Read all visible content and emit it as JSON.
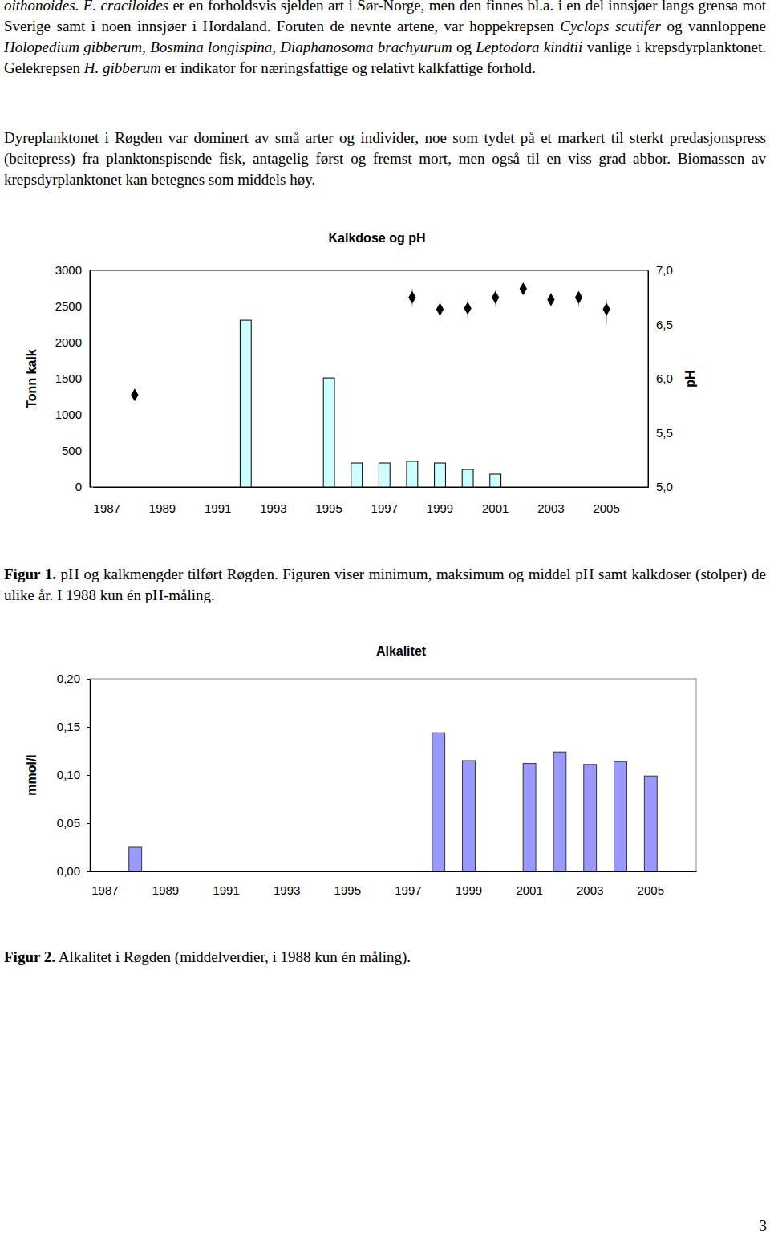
{
  "paragraphs": [
    [
      {
        "text": "oithonoides. E. craciloides",
        "italic": true
      },
      {
        "text": " er en forholdsvis sjelden art i Sør-Norge, men den finnes bl.a. i en del innsjøer langs grensa mot Sverige samt i noen innsjøer i Hordaland. Foruten de nevnte artene, var hoppekrepsen "
      },
      {
        "text": "Cyclops scutifer",
        "italic": true
      },
      {
        "text": " og vannloppene "
      },
      {
        "text": "Holopedium gibberum",
        "italic": true
      },
      {
        "text": ", "
      },
      {
        "text": "Bosmina longispina",
        "italic": true
      },
      {
        "text": ", "
      },
      {
        "text": "Diaphanosoma brachyurum",
        "italic": true
      },
      {
        "text": " og "
      },
      {
        "text": "Leptodora kindtii",
        "italic": true
      },
      {
        "text": " vanlige i krepsdyrplanktonet. Gelekrepsen "
      },
      {
        "text": "H. gibberum",
        "italic": true
      },
      {
        "text": " er indikator for næringsfattige og relativt kalkfattige forhold."
      }
    ],
    [
      {
        "text": "Dyreplanktonet i Røgden var dominert av små arter og individer, noe som tydet på et markert til sterkt predasjonspress (beitepress) fra planktonspisende fisk, antagelig først og fremst mort, men også til en viss grad abbor. Biomassen av krepsdyrplanktonet kan betegnes som middels høy."
      }
    ]
  ],
  "chart_data": [
    {
      "type": "bar",
      "title": "Kalkdose og pH",
      "categories": [
        "1987",
        null,
        "1989",
        null,
        "1991",
        null,
        "1993",
        null,
        "1995",
        null,
        "1997",
        null,
        "1999",
        null,
        "2001",
        null,
        "2003",
        null,
        "2005",
        null
      ],
      "y_label": "Tonn kalk",
      "y2_label": "pH",
      "ylim": [
        0,
        3000
      ],
      "yticks": [
        0,
        500,
        1000,
        1500,
        2000,
        2500,
        3000
      ],
      "y2lim": [
        5,
        7
      ],
      "y2ticks": [
        {
          "value": 5,
          "label": "5,0"
        },
        {
          "value": 5.5,
          "label": "5,5"
        },
        {
          "value": 6,
          "label": "6,0"
        },
        {
          "value": 6.5,
          "label": "6,5"
        },
        {
          "value": 7,
          "label": "7,0"
        }
      ],
      "series": [
        {
          "type": "bar",
          "color": "#ccffff",
          "values": [
            null,
            null,
            null,
            null,
            null,
            2310,
            null,
            null,
            1510,
            333,
            333,
            356,
            333,
            244,
            178,
            null,
            null,
            null,
            null,
            null
          ]
        },
        {
          "type": "scatter",
          "axis": "y2",
          "marker": "diamond",
          "color": "#000000",
          "values": [
            null,
            5.85,
            null,
            null,
            null,
            null,
            null,
            null,
            null,
            null,
            null,
            6.75,
            6.64,
            6.65,
            6.75,
            6.83,
            6.73,
            6.75,
            6.64,
            null
          ],
          "min": [
            null,
            null,
            null,
            null,
            null,
            null,
            null,
            null,
            null,
            null,
            null,
            6.67,
            6.55,
            6.56,
            6.67,
            6.79,
            6.67,
            6.67,
            6.5,
            null
          ],
          "max": [
            null,
            null,
            null,
            null,
            null,
            null,
            null,
            null,
            null,
            null,
            null,
            6.83,
            6.72,
            6.73,
            6.81,
            6.87,
            6.79,
            6.81,
            6.73,
            null
          ]
        }
      ]
    },
    {
      "type": "bar",
      "title": "Alkalitet",
      "categories": [
        "1987",
        null,
        "1989",
        null,
        "1991",
        null,
        "1993",
        null,
        "1995",
        null,
        "1997",
        null,
        "1999",
        null,
        "2001",
        null,
        "2003",
        null,
        "2005",
        null
      ],
      "y_label": "mmol/l",
      "ylim": [
        0,
        0.2
      ],
      "yticks": [
        {
          "value": 0,
          "label": "0,00"
        },
        {
          "value": 0.05,
          "label": "0,05"
        },
        {
          "value": 0.1,
          "label": "0,10"
        },
        {
          "value": 0.15,
          "label": "0,15"
        },
        {
          "value": 0.2,
          "label": "0,20"
        }
      ],
      "color": "#9999ff",
      "values": [
        null,
        0.025,
        null,
        null,
        null,
        null,
        null,
        null,
        null,
        null,
        null,
        0.144,
        0.115,
        null,
        0.112,
        0.124,
        0.111,
        0.114,
        0.099,
        null
      ]
    }
  ],
  "captions": [
    {
      "label": "Figur 1.",
      "text": " pH og kalkmengder tilført Røgden. Figuren viser minimum, maksimum og middel pH samt kalkdoser (stolper) de ulike år. I 1988 kun én pH-måling."
    },
    {
      "label": "Figur 2.",
      "text": " Alkalitet i Røgden (middelverdier, i 1988 kun én måling)."
    }
  ],
  "page_number": 3
}
